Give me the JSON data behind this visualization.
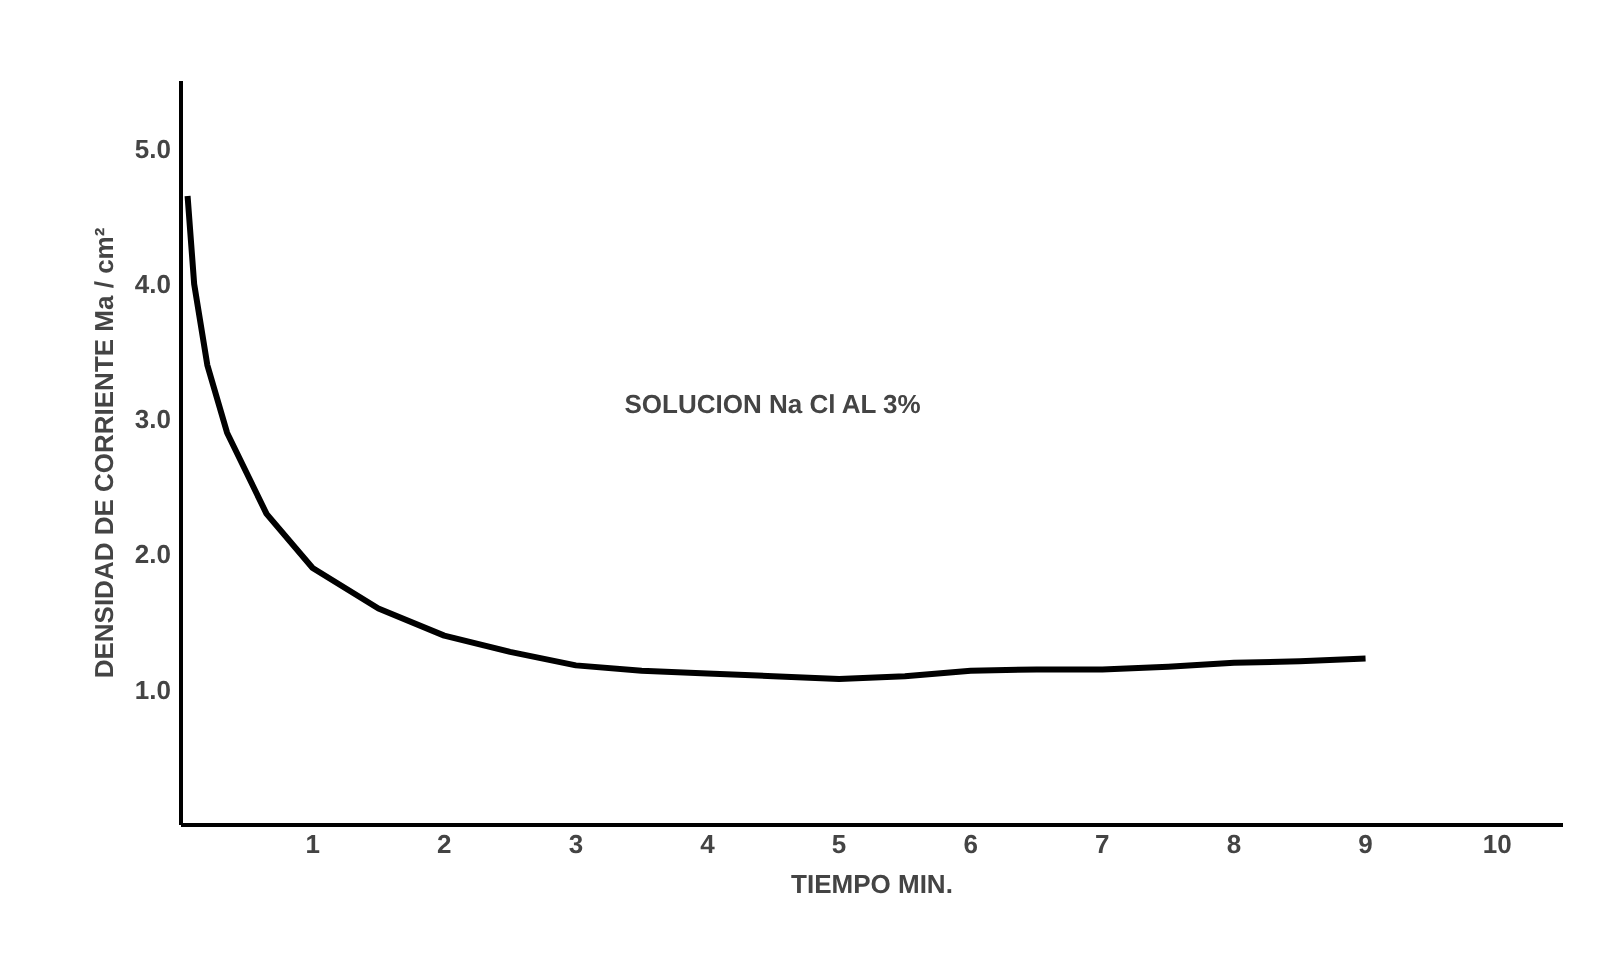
{
  "chart_data": {
    "type": "line",
    "xlabel": "TIEMPO MIN.",
    "ylabel": "DENSIDAD DE CORRIENTE Ma / cm²",
    "annotations": [
      "SOLUCION Na Cl AL 3%"
    ],
    "x": [
      0.05,
      0.1,
      0.2,
      0.35,
      0.5,
      0.65,
      1,
      1.5,
      2,
      2.5,
      3,
      3.5,
      4,
      4.5,
      5,
      5.5,
      6,
      6.5,
      7,
      7.5,
      8,
      8.5,
      9
    ],
    "series": [
      {
        "color": "#000000",
        "values": [
          4.65,
          4.0,
          3.4,
          2.9,
          2.6,
          2.3,
          1.9,
          1.6,
          1.4,
          1.28,
          1.18,
          1.14,
          1.12,
          1.1,
          1.08,
          1.1,
          1.14,
          1.15,
          1.15,
          1.17,
          1.2,
          1.21,
          1.23
        ]
      }
    ],
    "xlim": [
      0,
      10.5
    ],
    "ylim": [
      0,
      5.5
    ],
    "xticks": [
      1,
      2,
      3,
      4,
      5,
      6,
      7,
      8,
      9,
      10
    ],
    "yticks": [
      {
        "value": 1,
        "label": "1.0"
      },
      {
        "value": 2,
        "label": "2.0"
      },
      {
        "value": 3,
        "label": "3.0"
      },
      {
        "value": 4,
        "label": "4.0"
      },
      {
        "value": 5,
        "label": "5.0"
      }
    ],
    "grid": false,
    "marker": "none",
    "line_style": "solid"
  }
}
